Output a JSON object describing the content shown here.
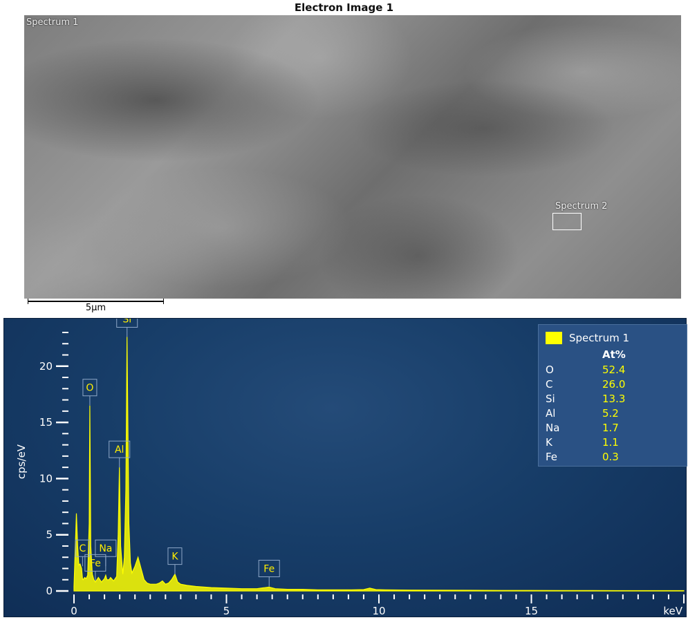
{
  "sem": {
    "title": "Electron Image 1",
    "spectrum1_label": "Spectrum 1",
    "spectrum2_label": "Spectrum 2",
    "scalebar_label": "5µm"
  },
  "chart_data": {
    "type": "line",
    "title": "",
    "xlabel": "keV",
    "ylabel": "cps/eV",
    "xlim": [
      0,
      20
    ],
    "ylim": [
      0,
      23
    ],
    "x_ticks": [
      0,
      5,
      10,
      15
    ],
    "y_ticks": [
      0,
      5,
      10,
      15,
      20
    ],
    "series": [
      {
        "name": "Spectrum 1",
        "color": "#ffff00",
        "x": [
          0.0,
          0.08,
          0.12,
          0.16,
          0.2,
          0.25,
          0.28,
          0.3,
          0.35,
          0.4,
          0.45,
          0.5,
          0.52,
          0.55,
          0.6,
          0.65,
          0.7,
          0.75,
          0.8,
          0.9,
          1.0,
          1.04,
          1.08,
          1.15,
          1.2,
          1.3,
          1.4,
          1.45,
          1.49,
          1.53,
          1.6,
          1.65,
          1.7,
          1.74,
          1.8,
          1.85,
          1.9,
          2.0,
          2.1,
          2.2,
          2.3,
          2.4,
          2.5,
          2.6,
          2.7,
          2.8,
          2.9,
          3.0,
          3.1,
          3.2,
          3.31,
          3.4,
          3.5,
          3.7,
          4.0,
          4.5,
          5.0,
          5.5,
          6.0,
          6.4,
          6.6,
          7.0,
          7.5,
          8.0,
          8.5,
          9.0,
          9.5,
          9.7,
          9.9,
          10.2,
          11.0,
          12.0,
          13.0,
          14.0,
          15.0,
          16.0,
          17.0,
          18.0,
          19.0,
          20.0
        ],
        "values": [
          0.4,
          6.9,
          4.0,
          2.3,
          2.4,
          2.0,
          1.1,
          1.0,
          1.2,
          1.1,
          1.4,
          6.0,
          16.5,
          4.0,
          1.5,
          1.0,
          0.8,
          1.0,
          1.2,
          0.8,
          1.1,
          1.4,
          1.0,
          1.0,
          1.2,
          0.9,
          1.3,
          5.0,
          11.0,
          4.0,
          1.5,
          3.0,
          9.0,
          22.6,
          6.0,
          2.5,
          1.6,
          2.2,
          3.0,
          2.0,
          1.0,
          0.7,
          0.6,
          0.6,
          0.6,
          0.7,
          0.9,
          0.6,
          0.7,
          1.0,
          1.5,
          0.8,
          0.6,
          0.5,
          0.4,
          0.3,
          0.25,
          0.2,
          0.2,
          0.35,
          0.2,
          0.15,
          0.15,
          0.1,
          0.1,
          0.1,
          0.12,
          0.25,
          0.12,
          0.1,
          0.08,
          0.07,
          0.06,
          0.05,
          0.05,
          0.04,
          0.04,
          0.03,
          0.03,
          0.03
        ]
      }
    ],
    "peaks": [
      {
        "label": "Si",
        "x": 1.74,
        "y_label": 22.6
      },
      {
        "label": "O",
        "x": 0.52,
        "y_label": 16.5
      },
      {
        "label": "Al",
        "x": 1.49,
        "y_label": 11.0
      },
      {
        "label": "C",
        "x": 0.28,
        "y_label": 2.2
      },
      {
        "label": "Na",
        "x": 1.04,
        "y_label": 2.2
      },
      {
        "label": "Fe",
        "x": 0.7,
        "y_label": 0.9
      },
      {
        "label": "K",
        "x": 3.31,
        "y_label": 1.5
      },
      {
        "label": "Fe",
        "x": 6.4,
        "y_label": 0.4
      }
    ],
    "legend": {
      "position": "top-right",
      "header": "At%",
      "rows": [
        {
          "element": "O",
          "value": "52.4"
        },
        {
          "element": "C",
          "value": "26.0"
        },
        {
          "element": "Si",
          "value": "13.3"
        },
        {
          "element": "Al",
          "value": "5.2"
        },
        {
          "element": "Na",
          "value": "1.7"
        },
        {
          "element": "K",
          "value": "1.1"
        },
        {
          "element": "Fe",
          "value": "0.3"
        }
      ]
    }
  }
}
